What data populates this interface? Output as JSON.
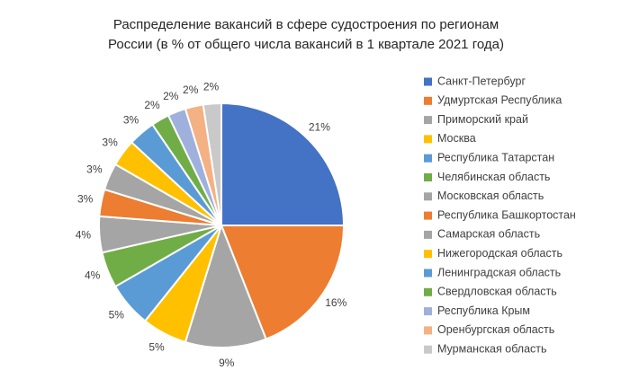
{
  "chart_data": {
    "type": "pie",
    "title": [
      "Распределение вакансий в сфере судостроения по регионам",
      "России (в % от общего числа вакансий в 1 квартале 2021 года)"
    ],
    "categories": [
      "Санкт-Петербург",
      "Удмуртская Республика",
      "Приморский край",
      "Москва",
      "Республика Татарстан",
      "Челябинская область",
      "Московская область",
      "Республика Башкортостан",
      "Самарская область",
      "Нижегородская область",
      "Ленинградская область",
      "Свердловская область",
      "Республика Крым",
      "Оренбургская область",
      "Мурманская область"
    ],
    "values": [
      21,
      16,
      9,
      5,
      5,
      4,
      4,
      3,
      3,
      3,
      3,
      2,
      2,
      2,
      2
    ],
    "value_labels": [
      "21%",
      "16%",
      "9%",
      "5%",
      "5%",
      "4%",
      "4%",
      "3%",
      "3%",
      "3%",
      "3%",
      "2%",
      "2%",
      "2%",
      "2%"
    ],
    "colors": [
      "#4472c4",
      "#ed7d31",
      "#a5a5a5",
      "#ffc000",
      "#5b9bd5",
      "#70ad47",
      "#a5a5a5",
      "#ed7d31",
      "#a5a5a5",
      "#ffc000",
      "#5b9bd5",
      "#70ad47",
      "#9eb0db",
      "#f4b183",
      "#c9c9c9"
    ],
    "legend": "right"
  }
}
